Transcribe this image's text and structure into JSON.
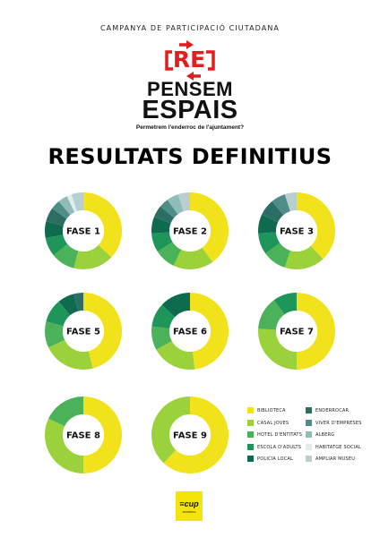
{
  "header": {
    "campaign": "CAMPANYA DE PARTICIPACIÓ CIUTADANA",
    "logo": {
      "mark": "RE",
      "line1": "PENSEM",
      "line2": "ESPAIS",
      "tagline": "Permetrem l'enderroc de l'ajuntament?",
      "accent_color": "#e01e1e"
    }
  },
  "title": "RESULTATS DEFINITIUS",
  "colors": {
    "biblioteca": "#f2e21c",
    "casal_joves": "#9bd23c",
    "hotel_entitats": "#4cb25a",
    "escola_adults": "#1f9659",
    "policia_local": "#0e6b4f",
    "enderrocar": "#2d6e64",
    "viver_empreses": "#4f8e88",
    "alberg": "#8fbcb8",
    "habitatge_social": "#ddeeed",
    "ampliar_museu": "#b9cfcf"
  },
  "chart_data": {
    "type": "donut",
    "categories": [
      "BIBLIOTECA",
      "CASAL JOVES",
      "HOTEL D'ENTITATS",
      "ESCOLA D'ADULTS",
      "POLICIA LOCAL",
      "ENDERROCAR",
      "VIVER D'EMPRESES",
      "ALBERG",
      "HABITATGE SOCIAL",
      "AMPLIAR MUSEU"
    ],
    "charts": [
      {
        "label": "FASE 1",
        "values": [
          37,
          17,
          10,
          8,
          7,
          6,
          4,
          4,
          2,
          5
        ]
      },
      {
        "label": "FASE 2",
        "values": [
          40,
          17,
          9,
          8,
          7,
          5,
          4,
          5,
          0,
          5
        ]
      },
      {
        "label": "FASE 3",
        "values": [
          38,
          17,
          10,
          9,
          8,
          7,
          6,
          0,
          0,
          5
        ]
      },
      {
        "label": "FASE 5",
        "values": [
          46,
          22,
          11,
          10,
          7,
          4,
          0,
          0,
          0,
          0
        ]
      },
      {
        "label": "FASE 6",
        "values": [
          48,
          19,
          10,
          10,
          13,
          0,
          0,
          0,
          0,
          0
        ]
      },
      {
        "label": "FASE 7",
        "values": [
          50,
          26,
          14,
          10,
          0,
          0,
          0,
          0,
          0,
          0
        ]
      },
      {
        "label": "FASE 8",
        "values": [
          50,
          32,
          18,
          0,
          0,
          0,
          0,
          0,
          0,
          0
        ]
      },
      {
        "label": "FASE 9",
        "values": [
          62,
          38,
          0,
          0,
          0,
          0,
          0,
          0,
          0,
          0
        ]
      }
    ]
  },
  "legend": {
    "items": [
      {
        "label": "BIBLIOTECA",
        "color": "#f2e21c"
      },
      {
        "label": "CASAL JOVES",
        "color": "#9bd23c"
      },
      {
        "label": "HOTEL D'ENTITATS",
        "color": "#4cb25a"
      },
      {
        "label": "ESCOLA D'ADULTS",
        "color": "#1f9659"
      },
      {
        "label": "POLICIA LOCAL",
        "color": "#0e6b4f"
      },
      {
        "label": "ENDERROCAR",
        "color": "#2d6e64"
      },
      {
        "label": "VIVER D'EMPRESES",
        "color": "#4f8e88"
      },
      {
        "label": "ALBERG",
        "color": "#8fbcb8"
      },
      {
        "label": "HABITATGE SOCIAL",
        "color": "#ddeeed"
      },
      {
        "label": "AMPLIAR MUSEU",
        "color": "#b9cfcf"
      }
    ]
  },
  "footer": {
    "badge_text": "≡cup",
    "badge_sub": "MANRESA",
    "badge_color": "#f5e30c"
  }
}
